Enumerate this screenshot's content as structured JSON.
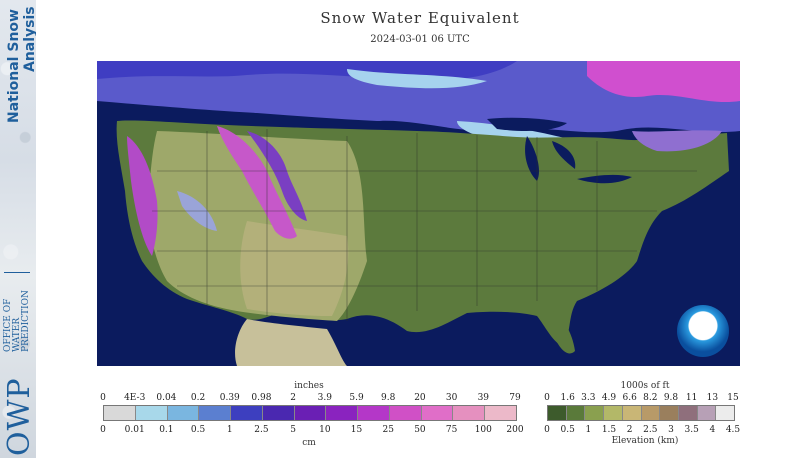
{
  "branding": {
    "nsa_line1": "National Snow",
    "nsa_line2": "Analysis",
    "owp_acronym": "OWP",
    "owp_line1": "OFFICE OF",
    "owp_line2": "WATER",
    "owp_line3": "PREDICTION",
    "noaa_logo": "NOAA"
  },
  "header": {
    "title": "Snow Water Equivalent",
    "datetime": "2024-03-01 06 UTC"
  },
  "swe_legend": {
    "top_unit": "inches",
    "bottom_unit": "cm",
    "top_ticks": [
      "0",
      "4E-3",
      "0.04",
      "0.2",
      "0.39",
      "0.98",
      "2",
      "3.9",
      "5.9",
      "9.8",
      "20",
      "30",
      "39",
      "79"
    ],
    "bottom_ticks": [
      "0",
      "0.01",
      "0.1",
      "0.5",
      "1",
      "2.5",
      "5",
      "10",
      "15",
      "25",
      "50",
      "75",
      "100",
      "200"
    ],
    "colors": [
      "#d9d9d9",
      "#a8d8ea",
      "#7ab6e0",
      "#5b7fd0",
      "#3d3fbf",
      "#4a28b0",
      "#6a1fb4",
      "#8a23bf",
      "#b437c8",
      "#d050c6",
      "#e06ec8",
      "#e590bf",
      "#ecb9c9"
    ]
  },
  "elev_legend": {
    "top_unit": "1000s of ft",
    "bottom_label": "Elevation (km)",
    "top_ticks": [
      "0",
      "1.6",
      "3.3",
      "4.9",
      "6.6",
      "8.2",
      "9.8",
      "11",
      "13",
      "15"
    ],
    "bottom_ticks": [
      "0",
      "0.5",
      "1",
      "1.5",
      "2",
      "2.5",
      "3",
      "3.5",
      "4",
      "4.5"
    ],
    "colors": [
      "#3d5b2c",
      "#5a7a3a",
      "#8aa04f",
      "#b3b868",
      "#c9b676",
      "#b89a68",
      "#9a7f5d",
      "#8f6f7c",
      "#b7a0b6",
      "#ececec"
    ]
  }
}
